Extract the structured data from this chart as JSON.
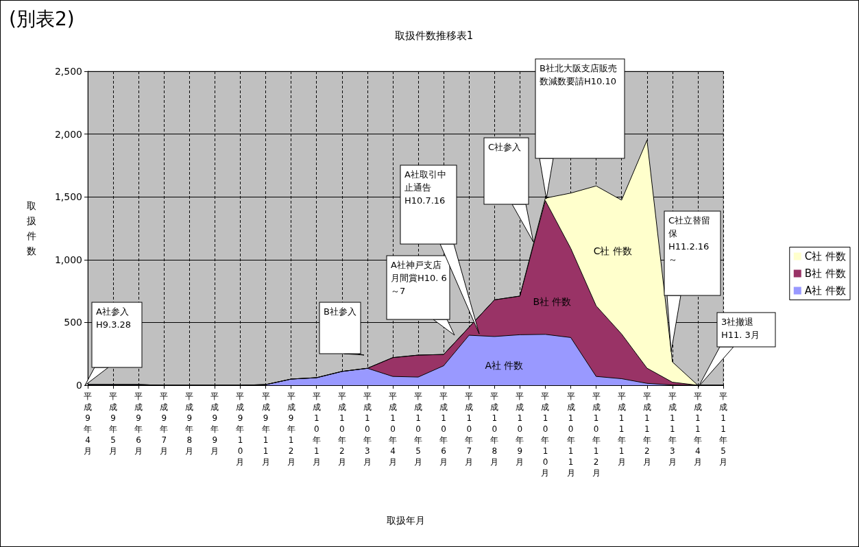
{
  "chart_data": {
    "type": "area",
    "title": "取扱件数推移表1",
    "xlabel": "取扱年月",
    "ylabel": "取扱件数",
    "categories": [
      "平成9年4月",
      "平成9年5月",
      "平成9年6月",
      "平成9年7月",
      "平成9年8月",
      "平成9年9月",
      "平成9年10月",
      "平成9年11月",
      "平成9年12月",
      "平成10年1月",
      "平成10年2月",
      "平成10年3月",
      "平成10年4月",
      "平成10年5月",
      "平成10年6月",
      "平成10年7月",
      "平成10年8月",
      "平成10年9月",
      "平成10年10月",
      "平成10年11月",
      "平成10年12月",
      "平成11年1月",
      "平成11年2月",
      "平成11年3月",
      "平成11年4月",
      "平成11年5月"
    ],
    "series": [
      {
        "name": "A社 件数",
        "color": "#9999ff",
        "values": [
          5,
          5,
          5,
          0,
          0,
          0,
          0,
          5,
          49,
          60,
          110,
          135,
          70,
          65,
          155,
          398,
          388,
          402,
          405,
          380,
          70,
          52,
          15,
          2,
          0,
          0
        ]
      },
      {
        "name": "B社 件数",
        "color": "#993366",
        "values": [
          0,
          0,
          0,
          0,
          0,
          0,
          0,
          0,
          0,
          0,
          0,
          0,
          150,
          175,
          90,
          64,
          292,
          308,
          1065,
          710,
          562,
          356,
          121,
          22,
          0,
          0
        ]
      },
      {
        "name": "C社 件数",
        "color": "#ffffcc",
        "values": [
          0,
          0,
          0,
          0,
          0,
          0,
          0,
          0,
          0,
          0,
          0,
          0,
          0,
          0,
          0,
          0,
          0,
          0,
          20,
          440,
          955,
          1066,
          1815,
          161,
          0,
          0
        ]
      }
    ],
    "stacked": true,
    "ylim": [
      0,
      2500
    ],
    "yticks": [
      0,
      {
        "value": 500,
        "label": "500"
      },
      {
        "value": 1000,
        "label": "1,000"
      },
      {
        "value": 1500,
        "label": "1,500"
      },
      {
        "value": 2000,
        "label": "2,000"
      },
      {
        "value": 2500,
        "label": "2,500"
      }
    ],
    "grid": true,
    "legend": "right",
    "annotations": [
      "(別表2)",
      "A社参入H9.3.28",
      "B社参入",
      "A社神戸支店月間賞H10. 6～7",
      "A社取引中止通告H10.7.16",
      "C社参入",
      "B社北大阪支店販売数減数要請H10.10",
      "C社立替留保H11.2.16～",
      "3社撤退H11. 3月"
    ]
  }
}
